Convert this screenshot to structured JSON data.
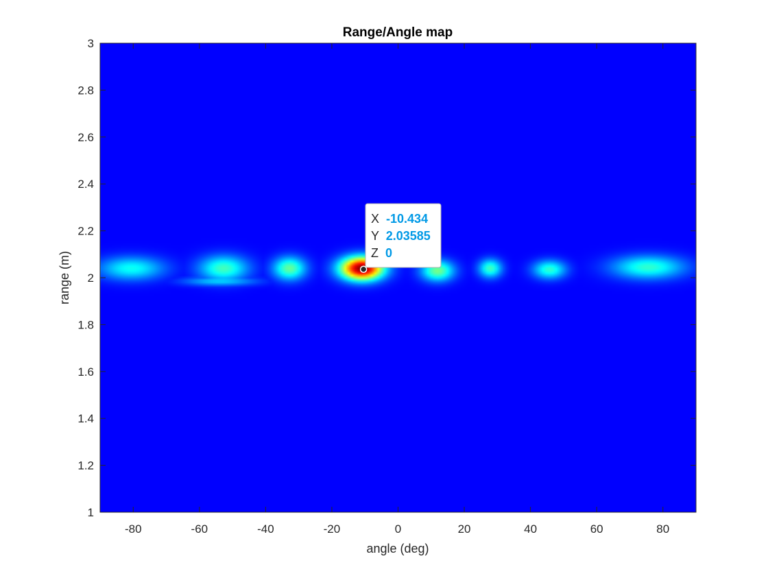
{
  "chart_data": {
    "type": "heatmap",
    "title": "Range/Angle map",
    "xlabel": "angle (deg)",
    "ylabel": "range (m)",
    "xlim": [
      -90,
      90
    ],
    "ylim": [
      1,
      3
    ],
    "x_ticks": [
      -80,
      -60,
      -40,
      -20,
      0,
      20,
      40,
      60,
      80
    ],
    "x_tick_labels": [
      "-80",
      "-60",
      "-40",
      "-20",
      "0",
      "20",
      "40",
      "60",
      "80"
    ],
    "y_ticks": [
      1,
      1.2,
      1.4,
      1.6,
      1.8,
      2,
      2.2,
      2.4,
      2.6,
      2.8,
      3
    ],
    "y_tick_labels": [
      "1",
      "1.2",
      "1.4",
      "1.6",
      "1.8",
      "2",
      "2.2",
      "2.4",
      "2.6",
      "2.8",
      "3"
    ],
    "colormap": "jet",
    "background_value": 0,
    "grid": false,
    "blobs": [
      {
        "angle": -81,
        "range": 2.04,
        "angle_width": 10,
        "range_width": 0.05,
        "intensity": 0.3
      },
      {
        "angle": -53,
        "range": 2.04,
        "angle_width": 7.5,
        "range_width": 0.055,
        "intensity": 0.36
      },
      {
        "angle": -54,
        "range": 1.985,
        "angle_width": 11,
        "range_width": 0.02,
        "intensity": 0.24
      },
      {
        "angle": -33,
        "range": 2.04,
        "angle_width": 5,
        "range_width": 0.05,
        "intensity": 0.4
      },
      {
        "angle": -11,
        "range": 2.04,
        "angle_width": 6.5,
        "range_width": 0.05,
        "intensity": 1.0
      },
      {
        "angle": 12,
        "range": 2.03,
        "angle_width": 5,
        "range_width": 0.045,
        "intensity": 0.42
      },
      {
        "angle": 28,
        "range": 2.04,
        "angle_width": 3.5,
        "range_width": 0.04,
        "intensity": 0.36
      },
      {
        "angle": 46,
        "range": 2.035,
        "angle_width": 5,
        "range_width": 0.04,
        "intensity": 0.34
      },
      {
        "angle": 76,
        "range": 2.045,
        "angle_width": 11,
        "range_width": 0.05,
        "intensity": 0.34
      }
    ],
    "datatip": {
      "x_label": "X",
      "x_value": "-10.434",
      "y_label": "Y",
      "y_value": "2.03585",
      "z_label": "Z",
      "z_value": "0",
      "x": -10.434,
      "y": 2.03585
    }
  },
  "colors": {
    "background": "#00007f",
    "axis": "#262626",
    "datatip_value": "#0099e6"
  }
}
